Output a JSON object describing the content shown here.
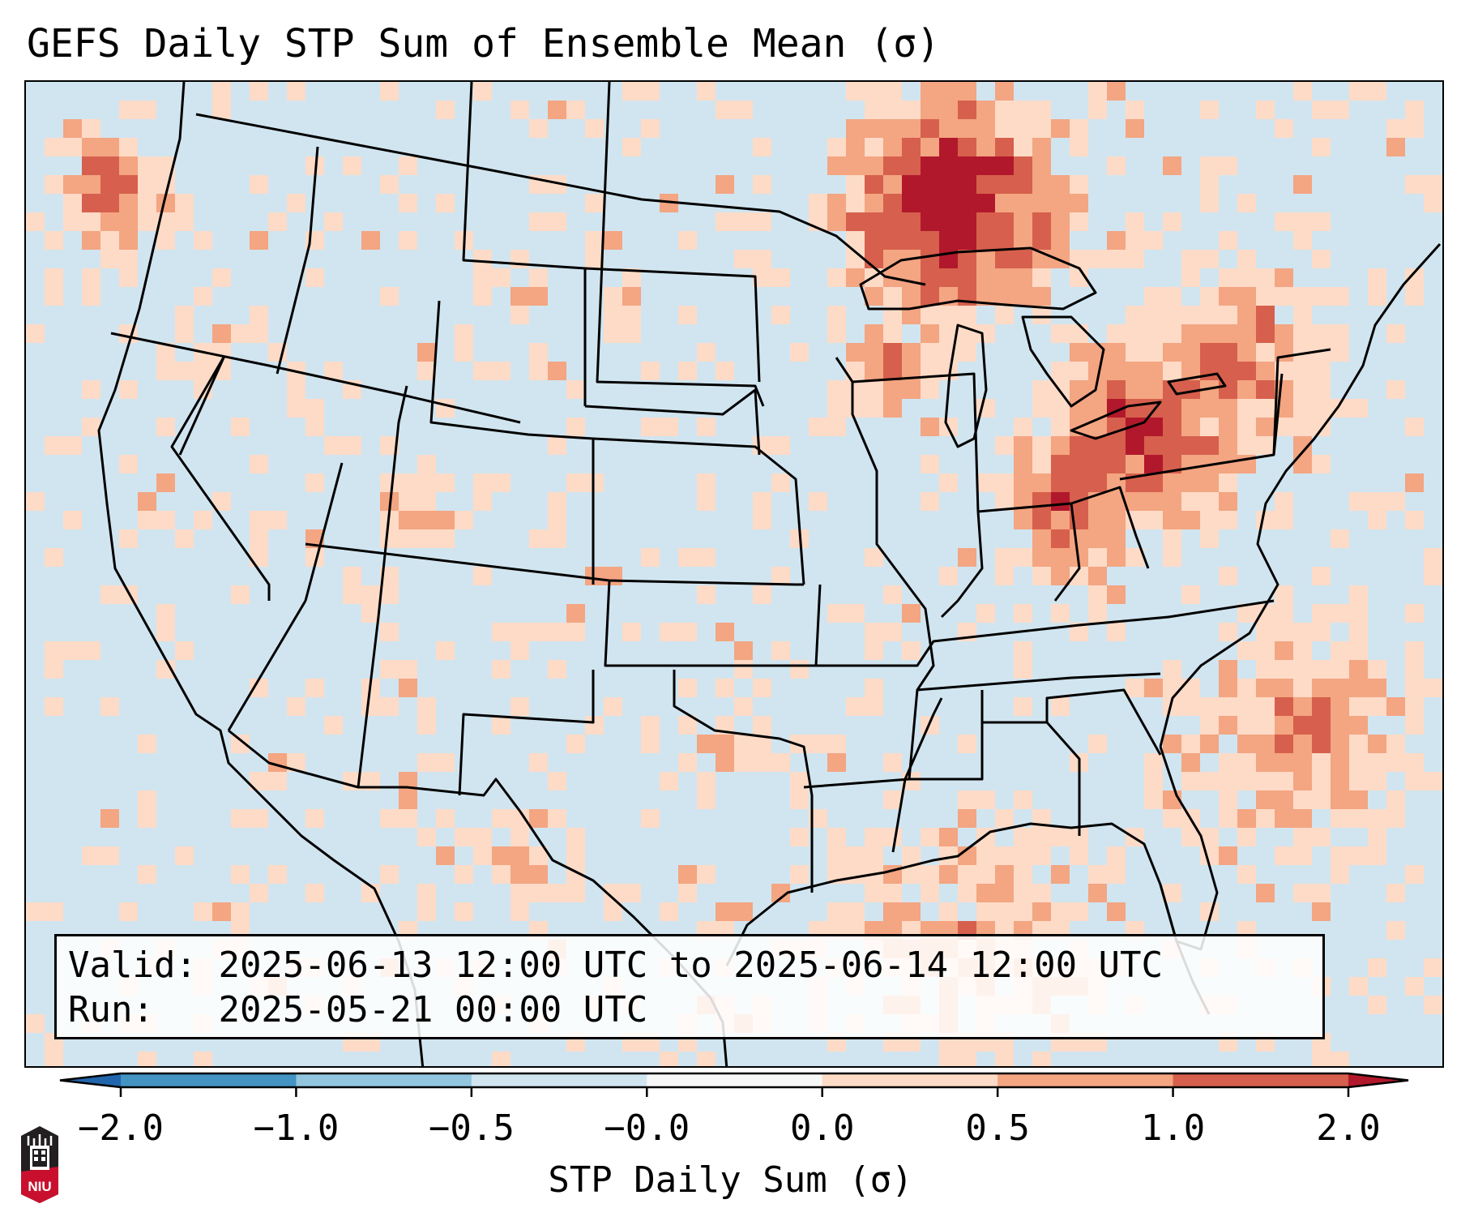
{
  "title": "GEFS Daily STP Sum of Ensemble Mean (σ)",
  "info": {
    "valid_label": "Valid:",
    "valid_value": "2025-06-13 12:00 UTC to 2025-06-14 12:00 UTC",
    "run_label": "Run:",
    "run_value": "2025-05-21 00:00 UTC"
  },
  "colorbar": {
    "label": "STP Daily Sum (σ)",
    "ticks": [
      "-2.0",
      "-1.0",
      "-0.5",
      "-0.0",
      "0.0",
      "0.5",
      "1.0",
      "2.0"
    ],
    "bins": [
      {
        "from": "-2.0",
        "to": "-1.0",
        "color": "#4393c3"
      },
      {
        "from": "-1.0",
        "to": "-0.5",
        "color": "#92c5de"
      },
      {
        "from": "-0.5",
        "to": "-0.0",
        "color": "#d1e5f0"
      },
      {
        "from": "-0.0",
        "to": "0.0",
        "color": "#f7f7f7"
      },
      {
        "from": "0.0",
        "to": "0.5",
        "color": "#fddbc7"
      },
      {
        "from": "0.5",
        "to": "1.0",
        "color": "#f4a582"
      },
      {
        "from": "1.0",
        "to": "2.0",
        "color": "#d6604d"
      }
    ],
    "under_color": "#2166ac",
    "over_color": "#b2182b"
  },
  "map": {
    "region": "Contiguous United States",
    "background_color": "#d1e5f0",
    "boundary_color": "#000000"
  },
  "logo": {
    "text": "NIU"
  }
}
